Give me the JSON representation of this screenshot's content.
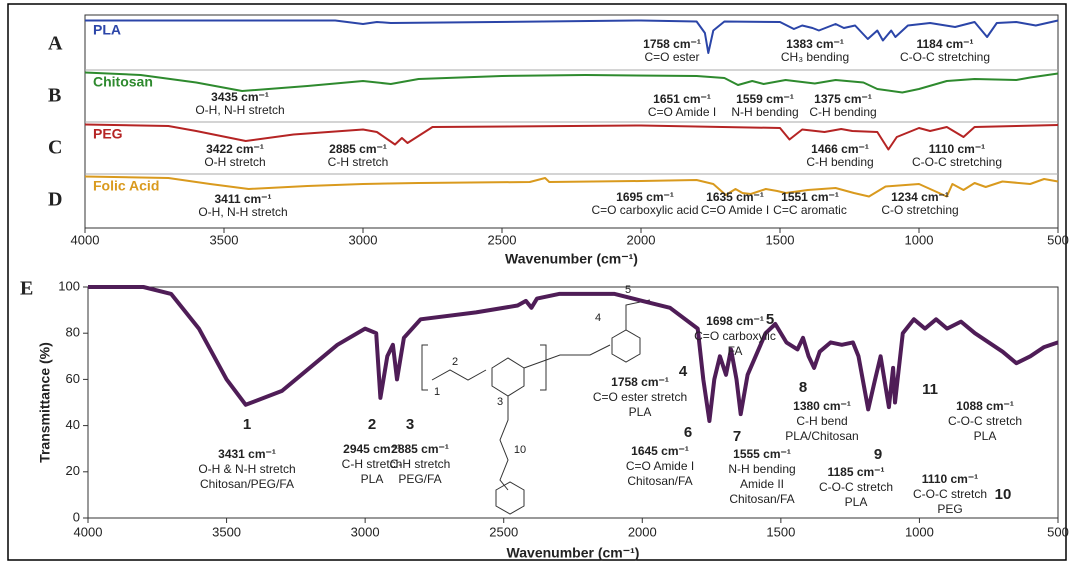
{
  "chart_data": [
    {
      "type": "line",
      "xlabel": "Wavenumber (cm⁻¹)",
      "xlim": [
        4000,
        500
      ],
      "xticks": [
        4000,
        3500,
        3000,
        2500,
        2000,
        1500,
        1000,
        500
      ],
      "panel_labels": [
        "A",
        "B",
        "C",
        "D"
      ],
      "series": [
        {
          "name": "PLA",
          "color": "#2b45a8",
          "x": [
            4000,
            3100,
            3000,
            2950,
            2900,
            2000,
            1800,
            1770,
            1758,
            1740,
            1700,
            1500,
            1450,
            1420,
            1383,
            1360,
            1300,
            1270,
            1230,
            1184,
            1150,
            1130,
            1100,
            1085,
            1040,
            960,
            870,
            800,
            755,
            720,
            650,
            580,
            540,
            500
          ],
          "values": [
            95,
            95,
            88,
            92,
            90,
            95,
            93,
            70,
            30,
            75,
            93,
            92,
            78,
            85,
            80,
            75,
            88,
            80,
            85,
            58,
            75,
            55,
            75,
            62,
            85,
            90,
            82,
            92,
            62,
            90,
            92,
            85,
            90,
            95
          ],
          "annotations": [
            {
              "label": "1758 cm⁻¹",
              "x": 1758,
              "text": "C=O ester"
            },
            {
              "label": "1383 cm⁻¹",
              "x": 1383,
              "text": "CH₃ bending"
            },
            {
              "label": "1184 cm⁻¹",
              "x": 1184,
              "text": "C-O-C stretching"
            }
          ]
        },
        {
          "name": "Chitosan",
          "color": "#2e8a2e",
          "x": [
            4000,
            3800,
            3600,
            3435,
            3200,
            3000,
            2900,
            2800,
            2500,
            2200,
            1800,
            1700,
            1651,
            1600,
            1559,
            1480,
            1420,
            1375,
            1300,
            1200,
            1150,
            1060,
            1000,
            900,
            800,
            650,
            600,
            500
          ],
          "values": [
            95,
            90,
            75,
            58,
            68,
            78,
            72,
            82,
            88,
            90,
            88,
            84,
            70,
            78,
            72,
            80,
            76,
            73,
            80,
            75,
            62,
            55,
            62,
            78,
            82,
            80,
            85,
            93
          ],
          "annotations": [
            {
              "label": "3435 cm⁻¹",
              "x": 3435,
              "text": "O-H, N-H stretch"
            },
            {
              "label": "1651 cm⁻¹",
              "x": 1651,
              "text": "C=O Amide I"
            },
            {
              "label": "1559 cm⁻¹",
              "x": 1559,
              "text": "N-H bending"
            },
            {
              "label": "1375 cm⁻¹",
              "x": 1375,
              "text": "C-H bending"
            }
          ]
        },
        {
          "name": "PEG",
          "color": "#b52424",
          "x": [
            4000,
            3700,
            3600,
            3422,
            3250,
            3000,
            2950,
            2885,
            2860,
            2840,
            2750,
            2000,
            1500,
            1466,
            1420,
            1340,
            1280,
            1240,
            1150,
            1110,
            1080,
            1000,
            960,
            900,
            840,
            800,
            650,
            500
          ],
          "values": [
            95,
            92,
            82,
            62,
            75,
            85,
            80,
            55,
            68,
            58,
            90,
            93,
            88,
            65,
            85,
            80,
            86,
            82,
            80,
            45,
            70,
            88,
            82,
            90,
            70,
            90,
            92,
            94
          ],
          "annotations": [
            {
              "label": "3422 cm⁻¹",
              "x": 3422,
              "text": "O-H stretch"
            },
            {
              "label": "2885 cm⁻¹",
              "x": 2885,
              "text": "C-H stretch"
            },
            {
              "label": "1466 cm⁻¹",
              "x": 1466,
              "text": "C-H bending"
            },
            {
              "label": "1110 cm⁻¹",
              "x": 1110,
              "text": "C-O-C stretching"
            }
          ]
        },
        {
          "name": "Folic Acid",
          "color": "#d99a1e",
          "x": [
            4000,
            3700,
            3550,
            3411,
            3200,
            3000,
            2800,
            2400,
            2345,
            2330,
            2000,
            1800,
            1740,
            1695,
            1660,
            1635,
            1605,
            1551,
            1510,
            1480,
            1400,
            1300,
            1234,
            1180,
            1120,
            1000,
            900,
            880,
            840,
            800,
            760,
            700,
            600,
            550,
            500
          ],
          "values": [
            95,
            92,
            80,
            70,
            76,
            80,
            82,
            84,
            92,
            84,
            86,
            88,
            80,
            58,
            70,
            62,
            60,
            70,
            66,
            62,
            68,
            72,
            62,
            55,
            75,
            80,
            55,
            80,
            68,
            82,
            74,
            85,
            80,
            90,
            85
          ],
          "annotations": [
            {
              "label": "3411 cm⁻¹",
              "x": 3411,
              "text": "O-H, N-H stretch"
            },
            {
              "label": "1695 cm⁻¹",
              "x": 1695,
              "text": "C=O carboxylic acid"
            },
            {
              "label": "1635 cm⁻¹",
              "x": 1635,
              "text": "C=O Amide I"
            },
            {
              "label": "1551 cm⁻¹",
              "x": 1551,
              "text": "C=C aromatic"
            },
            {
              "label": "1234 cm⁻¹",
              "x": 1234,
              "text": "C-O stretching"
            }
          ]
        }
      ]
    },
    {
      "type": "line",
      "panel_label": "E",
      "xlabel": "Wavenumber (cm⁻¹)",
      "ylabel": "Transmittance (%)",
      "xlim": [
        4000,
        500
      ],
      "xticks": [
        4000,
        3500,
        3000,
        2500,
        2000,
        1500,
        1000,
        500
      ],
      "ylim": [
        0,
        100
      ],
      "yticks": [
        0,
        20,
        40,
        60,
        80,
        100
      ],
      "structure_labels": [
        "1",
        "2",
        "3",
        "4",
        "5",
        "10"
      ],
      "series": [
        {
          "name": "E",
          "color": "#4f1d57",
          "x": [
            4000,
            3800,
            3700,
            3600,
            3500,
            3431,
            3300,
            3100,
            3000,
            2960,
            2945,
            2920,
            2900,
            2885,
            2860,
            2800,
            2600,
            2450,
            2420,
            2400,
            2380,
            2300,
            2100,
            2000,
            1900,
            1800,
            1780,
            1758,
            1740,
            1720,
            1698,
            1680,
            1660,
            1645,
            1620,
            1555,
            1520,
            1480,
            1440,
            1420,
            1400,
            1380,
            1360,
            1320,
            1280,
            1240,
            1220,
            1185,
            1160,
            1140,
            1110,
            1095,
            1088,
            1060,
            1020,
            980,
            940,
            900,
            850,
            800,
            700,
            650,
            600,
            550,
            500
          ],
          "values": [
            100,
            100,
            97,
            82,
            60,
            49,
            55,
            75,
            82,
            80,
            52,
            70,
            75,
            60,
            78,
            86,
            89,
            92,
            94,
            91,
            95,
            97,
            97,
            94,
            91,
            82,
            60,
            42,
            60,
            70,
            62,
            73,
            60,
            45,
            62,
            80,
            84,
            76,
            73,
            78,
            70,
            65,
            72,
            76,
            75,
            76,
            70,
            47,
            60,
            70,
            48,
            65,
            50,
            80,
            86,
            82,
            86,
            82,
            85,
            80,
            72,
            67,
            70,
            74,
            76
          ]
        }
      ],
      "annotations": [
        {
          "number": "1",
          "x": 3431,
          "lines": [
            "3431 cm⁻¹",
            "O-H & N-H stretch",
            "Chitosan/PEG/FA"
          ]
        },
        {
          "number": "2",
          "x": 2945,
          "lines": [
            "2945 cm⁻¹",
            "C-H stretch",
            "PLA"
          ]
        },
        {
          "number": "3",
          "x": 2885,
          "lines": [
            "2885 cm⁻¹",
            "C-H stretch",
            "PEG/FA"
          ]
        },
        {
          "number": "4",
          "x": 1758,
          "lines": [
            "1758 cm⁻¹",
            "C=O ester stretch",
            "PLA"
          ]
        },
        {
          "number": "5",
          "x": 1698,
          "lines": [
            "1698 cm⁻¹",
            "C=O carboxylic",
            "FA"
          ]
        },
        {
          "number": "6",
          "x": 1645,
          "lines": [
            "1645 cm⁻¹",
            "C=O Amide I",
            "Chitosan/FA"
          ]
        },
        {
          "number": "7",
          "x": 1555,
          "lines": [
            "1555 cm⁻¹",
            "N-H bending",
            "Amide II",
            "Chitosan/FA"
          ]
        },
        {
          "number": "8",
          "x": 1380,
          "lines": [
            "1380 cm⁻¹",
            "C-H bend",
            "PLA/Chitosan"
          ]
        },
        {
          "number": "9",
          "x": 1185,
          "lines": [
            "1185 cm⁻¹",
            "C-O-C stretch",
            "PLA"
          ]
        },
        {
          "number": "10",
          "x": 1110,
          "lines": [
            "1110 cm⁻¹",
            "C-O-C stretch",
            "PEG"
          ]
        },
        {
          "number": "11",
          "x": 1088,
          "lines": [
            "1088 cm⁻¹",
            "C-O-C stretch",
            "PLA"
          ]
        }
      ]
    }
  ]
}
